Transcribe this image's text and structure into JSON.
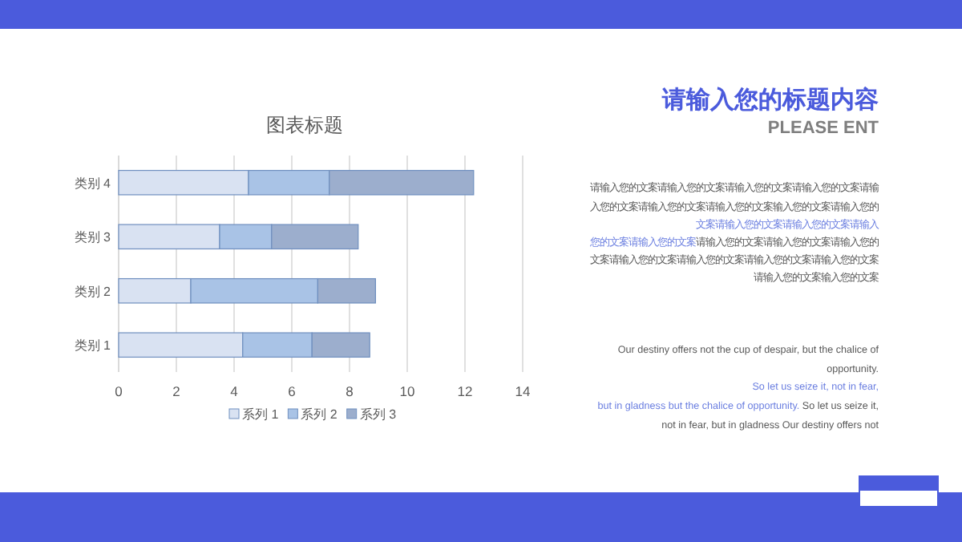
{
  "chart_data": {
    "type": "bar",
    "title": "图表标题",
    "orientation": "horizontal",
    "stacked": true,
    "categories": [
      "类别 4",
      "类别 3",
      "类别 2",
      "类别 1"
    ],
    "series": [
      {
        "name": "系列 1",
        "color": "#d9e2f2",
        "values": [
          4.5,
          3.5,
          2.5,
          4.3
        ]
      },
      {
        "name": "系列 2",
        "color": "#a9c3e6",
        "values": [
          2.8,
          1.8,
          4.4,
          2.4
        ]
      },
      {
        "name": "系列 3",
        "color": "#9caecd",
        "values": [
          5,
          3,
          2,
          2
        ]
      }
    ],
    "xlim": [
      0,
      14
    ],
    "xticks": [
      0,
      2,
      4,
      6,
      8,
      10,
      12,
      14
    ],
    "grid": "x",
    "legend": "bottom",
    "annotations": [
      "请输入您的标题内容",
      "PLEASE ENT",
      "请输入您的文案请输入您的文案请输入您的文案请输入您的文案请输",
      "入您的文案请输入您的文案请输入您的文案输入您的文案请输入您的",
      "文案请输入您的文案请输入您的文案请输入",
      "您的文案请输入您的文案",
      "请输入您的文案请输入您的文案请输入您的",
      "文案请输入您的文案请输入您的文案请输入您的文案请输入您的文案",
      "请输入您的文案输入您的文案",
      "Our destiny offers not the cup of despair, but the chalice of",
      "opportunity.",
      "So let us seize it, not in fear,",
      "but in gladness but the chalice of opportunity.",
      " So let us seize it,",
      "not in fear, but in gladness Our destiny offers not"
    ]
  }
}
